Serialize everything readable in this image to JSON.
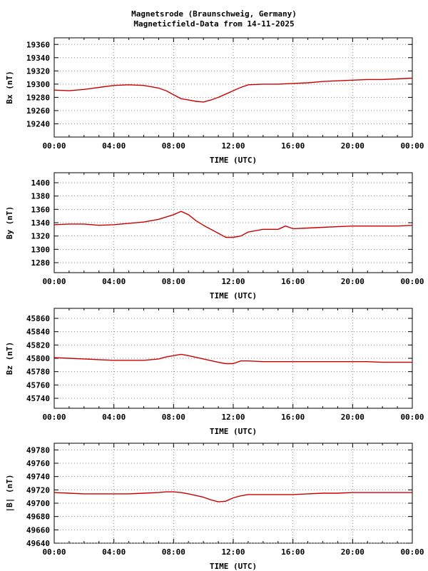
{
  "title_line1": "Magnetsrode (Braunschweig, Germany)",
  "title_line2": "Magneticfield-Data from 14-11-2025",
  "chart_data": [
    {
      "type": "line",
      "ylabel": "Bx (nT)",
      "xlabel": "TIME (UTC)",
      "xlim": [
        0,
        24
      ],
      "x_ticks": [
        "00:00",
        "04:00",
        "08:00",
        "12:00",
        "16:00",
        "20:00",
        "00:00"
      ],
      "ylim": [
        19220,
        19370
      ],
      "y_ticks": [
        19240,
        19260,
        19280,
        19300,
        19320,
        19340,
        19360
      ],
      "grid": true,
      "color": "#cc0000",
      "x": [
        0,
        1,
        2,
        3,
        4,
        5,
        6,
        7,
        7.5,
        8,
        8.5,
        9,
        9.5,
        10,
        10.5,
        11,
        11.5,
        12,
        12.5,
        13,
        14,
        15,
        16,
        17,
        18,
        19,
        20,
        21,
        22,
        23,
        24
      ],
      "y": [
        19291,
        19290,
        19292,
        19295,
        19298,
        19299,
        19298,
        19294,
        19290,
        19284,
        19278,
        19276,
        19274,
        19273,
        19276,
        19280,
        19285,
        19290,
        19295,
        19299,
        19300,
        19300,
        19301,
        19302,
        19304,
        19305,
        19306,
        19307,
        19307,
        19308,
        19309
      ]
    },
    {
      "type": "line",
      "ylabel": "By (nT)",
      "xlabel": "TIME (UTC)",
      "xlim": [
        0,
        24
      ],
      "x_ticks": [
        "00:00",
        "04:00",
        "08:00",
        "12:00",
        "16:00",
        "20:00",
        "00:00"
      ],
      "ylim": [
        1265,
        1415
      ],
      "y_ticks": [
        1280,
        1300,
        1320,
        1340,
        1360,
        1380,
        1400
      ],
      "grid": true,
      "color": "#cc0000",
      "x": [
        0,
        1,
        2,
        3,
        4,
        5,
        6,
        7,
        8,
        8.5,
        9,
        9.5,
        10,
        10.5,
        11,
        11.5,
        12,
        12.5,
        13,
        14,
        15,
        15.5,
        16,
        17,
        18,
        19,
        20,
        21,
        22,
        23,
        24
      ],
      "y": [
        1337,
        1338,
        1338,
        1336,
        1337,
        1339,
        1341,
        1345,
        1352,
        1357,
        1352,
        1343,
        1336,
        1330,
        1324,
        1318,
        1318,
        1320,
        1326,
        1330,
        1330,
        1335,
        1331,
        1332,
        1333,
        1334,
        1335,
        1335,
        1335,
        1335,
        1336
      ]
    },
    {
      "type": "line",
      "ylabel": "Bz (nT)",
      "xlabel": "TIME (UTC)",
      "xlim": [
        0,
        24
      ],
      "x_ticks": [
        "00:00",
        "04:00",
        "08:00",
        "12:00",
        "16:00",
        "20:00",
        "00:00"
      ],
      "ylim": [
        45725,
        45875
      ],
      "y_ticks": [
        45740,
        45760,
        45780,
        45800,
        45820,
        45840,
        45860
      ],
      "grid": true,
      "color": "#cc0000",
      "x": [
        0,
        1,
        2,
        3,
        4,
        5,
        6,
        7,
        7.5,
        8,
        8.5,
        9,
        10,
        11,
        11.5,
        12,
        12.5,
        13,
        14,
        15,
        16,
        17,
        18,
        19,
        20,
        21,
        22,
        23,
        24
      ],
      "y": [
        45801,
        45800,
        45799,
        45798,
        45797,
        45797,
        45797,
        45799,
        45802,
        45804,
        45806,
        45804,
        45799,
        45794,
        45792,
        45792,
        45796,
        45796,
        45795,
        45795,
        45795,
        45795,
        45795,
        45795,
        45795,
        45795,
        45794,
        45794,
        45794
      ]
    },
    {
      "type": "line",
      "ylabel": "|B| (nT)",
      "xlabel": "TIME (UTC)",
      "xlim": [
        0,
        24
      ],
      "x_ticks": [
        "00:00",
        "04:00",
        "08:00",
        "12:00",
        "16:00",
        "20:00",
        "00:00"
      ],
      "ylim": [
        49640,
        49790
      ],
      "y_ticks": [
        49640,
        49660,
        49680,
        49700,
        49720,
        49740,
        49760,
        49780
      ],
      "grid": true,
      "color": "#cc0000",
      "x": [
        0,
        1,
        2,
        3,
        4,
        5,
        6,
        7,
        7.5,
        8,
        8.5,
        9,
        10,
        10.5,
        11,
        11.5,
        12,
        12.5,
        13,
        14,
        15,
        16,
        17,
        18,
        19,
        20,
        21,
        22,
        23,
        24
      ],
      "y": [
        49716,
        49715,
        49714,
        49714,
        49714,
        49714,
        49715,
        49716,
        49717,
        49717,
        49716,
        49714,
        49709,
        49705,
        49702,
        49703,
        49708,
        49711,
        49713,
        49713,
        49713,
        49713,
        49714,
        49715,
        49715,
        49716,
        49716,
        49716,
        49716,
        49716
      ]
    }
  ]
}
